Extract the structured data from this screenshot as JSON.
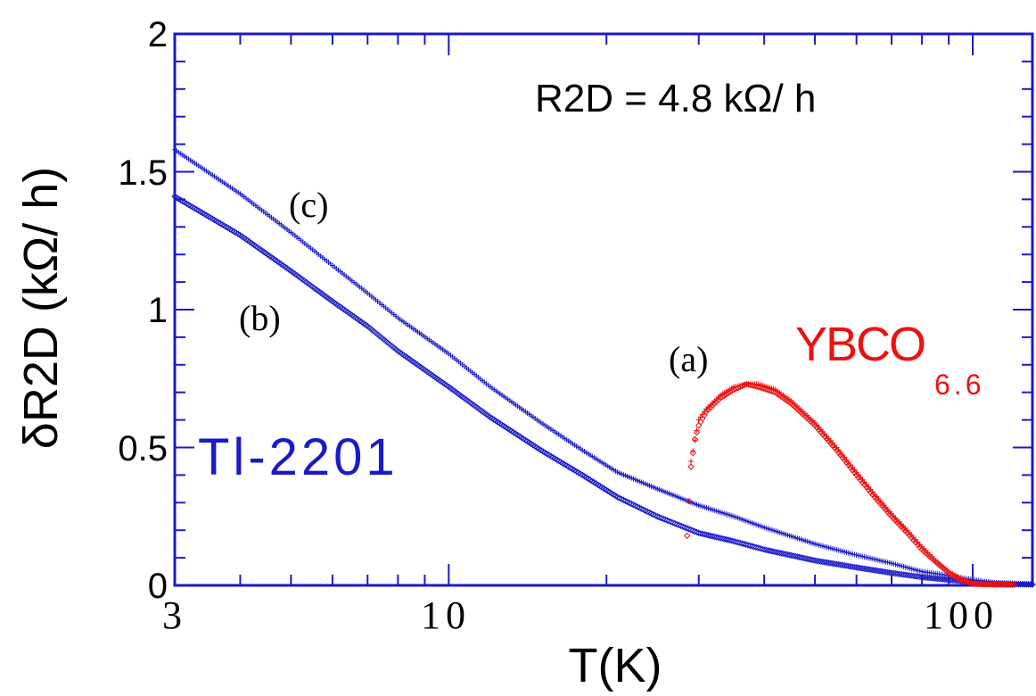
{
  "chart_data": {
    "type": "scatter",
    "x_scale": "log",
    "xlim": [
      3,
      130
    ],
    "ylim": [
      0,
      2
    ],
    "xlabel": "T(K)",
    "ylabel": "δR2D (kΩ/ h)",
    "x_ticks": [
      "3",
      "10",
      "100"
    ],
    "y_ticks": [
      "0",
      "0.5",
      "1",
      "1.5",
      "2"
    ],
    "grid": false,
    "annotations": {
      "r2d": "R2D = 4.8 kΩ/ h",
      "label_a": "(a)",
      "label_b": "(b)",
      "label_c": "(c)",
      "tl_sample": "Tl-2201",
      "ybco_main": "YBCO",
      "ybco_sub": "6.6"
    },
    "colors": {
      "axis": "#1a1ac8",
      "tl": "#1a1ac8",
      "ybco": "#ee1111"
    },
    "series": [
      {
        "marker": "plus",
        "color": "#1a1ac8",
        "points": [
          [
            3.0,
            1.58
          ],
          [
            4,
            1.42
          ],
          [
            5,
            1.28
          ],
          [
            6,
            1.16
          ],
          [
            7,
            1.06
          ],
          [
            8,
            0.97
          ],
          [
            10,
            0.84
          ],
          [
            12,
            0.72
          ],
          [
            15,
            0.59
          ],
          [
            18,
            0.49
          ],
          [
            21,
            0.41
          ],
          [
            25,
            0.35
          ],
          [
            30,
            0.29
          ],
          [
            35,
            0.25
          ],
          [
            40,
            0.21
          ],
          [
            50,
            0.15
          ],
          [
            60,
            0.11
          ],
          [
            70,
            0.08
          ],
          [
            80,
            0.05
          ],
          [
            90,
            0.035
          ],
          [
            100,
            0.02
          ],
          [
            110,
            0.01
          ],
          [
            130,
            0.005
          ]
        ]
      },
      {
        "marker": "diamond",
        "color": "#1a1ac8",
        "points": [
          [
            3.0,
            1.41
          ],
          [
            4,
            1.27
          ],
          [
            5,
            1.14
          ],
          [
            6,
            1.03
          ],
          [
            7,
            0.94
          ],
          [
            8,
            0.85
          ],
          [
            10,
            0.72
          ],
          [
            12,
            0.61
          ],
          [
            15,
            0.49
          ],
          [
            18,
            0.4
          ],
          [
            21,
            0.32
          ],
          [
            25,
            0.25
          ],
          [
            30,
            0.19
          ],
          [
            35,
            0.16
          ],
          [
            40,
            0.13
          ],
          [
            50,
            0.09
          ],
          [
            60,
            0.065
          ],
          [
            70,
            0.045
          ],
          [
            80,
            0.03
          ],
          [
            90,
            0.02
          ],
          [
            100,
            0.012
          ],
          [
            110,
            0.006
          ],
          [
            130,
            0.003
          ]
        ]
      },
      {
        "marker": "plus",
        "color": "#ee1111",
        "points": [
          [
            29,
            0.45
          ],
          [
            30,
            0.6
          ],
          [
            31,
            0.64
          ],
          [
            33,
            0.69
          ],
          [
            35,
            0.72
          ],
          [
            37,
            0.73
          ],
          [
            39,
            0.73
          ],
          [
            42,
            0.71
          ],
          [
            45,
            0.67
          ],
          [
            50,
            0.59
          ],
          [
            55,
            0.5
          ],
          [
            60,
            0.41
          ],
          [
            65,
            0.33
          ],
          [
            70,
            0.26
          ],
          [
            75,
            0.2
          ],
          [
            80,
            0.14
          ],
          [
            85,
            0.09
          ],
          [
            90,
            0.05
          ],
          [
            95,
            0.025
          ],
          [
            100,
            0.008
          ],
          [
            105,
            0.003
          ],
          [
            110,
            0.002
          ]
        ]
      },
      {
        "marker": "diamond",
        "color": "#ee1111",
        "points": [
          [
            28.5,
            0.18
          ],
          [
            29,
            0.43
          ],
          [
            29.5,
            0.53
          ],
          [
            30,
            0.58
          ],
          [
            31,
            0.63
          ],
          [
            33,
            0.68
          ],
          [
            35,
            0.71
          ],
          [
            37,
            0.73
          ],
          [
            39,
            0.72
          ],
          [
            42,
            0.7
          ],
          [
            45,
            0.66
          ],
          [
            50,
            0.58
          ],
          [
            55,
            0.49
          ],
          [
            60,
            0.4
          ],
          [
            65,
            0.32
          ],
          [
            70,
            0.25
          ],
          [
            75,
            0.19
          ],
          [
            80,
            0.13
          ],
          [
            85,
            0.085
          ],
          [
            90,
            0.045
          ],
          [
            95,
            0.02
          ],
          [
            100,
            0.006
          ],
          [
            110,
            0.003
          ],
          [
            120,
            0.002
          ]
        ]
      }
    ]
  }
}
